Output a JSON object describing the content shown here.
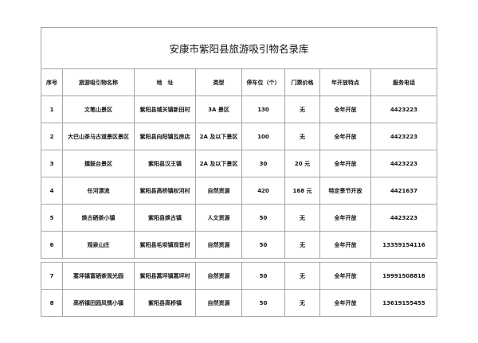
{
  "title": "安康市紫阳县旅游吸引物名录库",
  "headers": [
    "序号",
    "旅游吸引物名称",
    "地　址",
    "类型",
    "停车位（个）",
    "门票价格",
    "年开放特点",
    "服务电话"
  ],
  "rows": [
    [
      "1",
      "文笔山景区",
      "紫阳县城关镇新田村",
      "3A 景区",
      "130",
      "无",
      "全年开放",
      "4423223"
    ],
    [
      "2",
      "大巴山茶马古道景区景区",
      "紫阳县向阳镇瓦房店",
      "2A 及以下景区",
      "100",
      "无",
      "全年开放",
      "4423223"
    ],
    [
      "3",
      "擂鼓台景区",
      "紫阳县汉王镇",
      "2A 及以下景区",
      "30",
      "20 元",
      "全年开放",
      "4423223"
    ],
    [
      "4",
      "任河漂流",
      "紫阳县高桥镇权河村",
      "自然资源",
      "420",
      "168 元",
      "特定季节开放",
      "4421637"
    ],
    [
      "5",
      "焕古硒茶小镇",
      "紫阳县焕古镇",
      "人文资源",
      "50",
      "无",
      "全年开放",
      "4423223"
    ],
    [
      "6",
      "观泉山庄",
      "紫阳县毛坝镇观音村",
      "自然资源",
      "50",
      "无",
      "全年开放",
      "13359154116"
    ],
    [
      "7",
      "蒿坪镇富硒茶观光园",
      "紫阳县蒿坪镇蒿坪村",
      "自然资源",
      "50",
      "无",
      "全年开放",
      "19991508818"
    ],
    [
      "8",
      "高桥镇田园风情小镇",
      "紫阳县高桥镇",
      "自然资源",
      "50",
      "无",
      "全年开放",
      "13619155455"
    ]
  ]
}
